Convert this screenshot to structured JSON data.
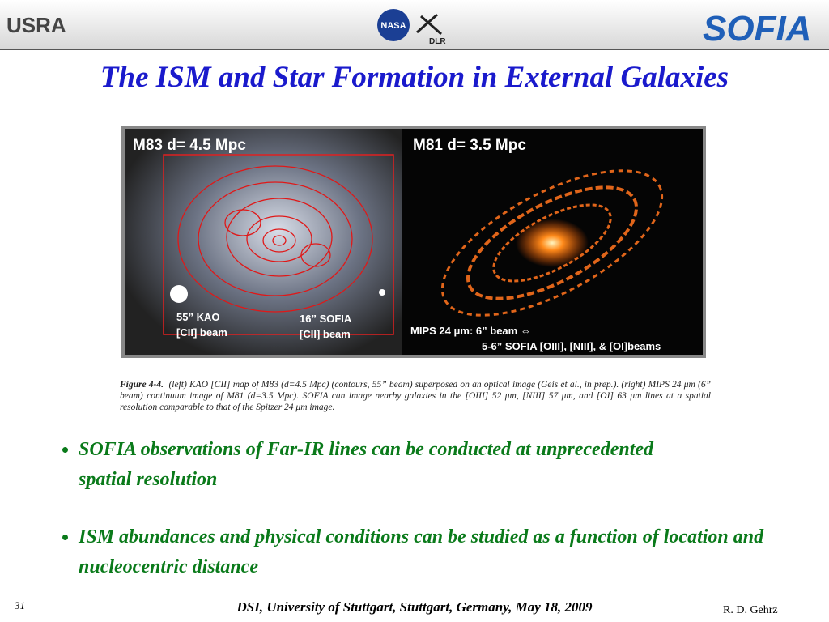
{
  "header": {
    "logos": {
      "usra": "USRA",
      "nasa": "NASA",
      "dlr": "DLR",
      "sofia": "SOFIA"
    }
  },
  "title": "The ISM and Star Formation in External Galaxies",
  "figure": {
    "left_panel": {
      "label": "M83 d= 4.5 Mpc",
      "kao_beam": [
        "55” KAO",
        "[CII] beam"
      ],
      "sofia_beam": [
        "16” SOFIA",
        "[CII] beam"
      ]
    },
    "right_panel": {
      "label": "M81 d= 3.5 Mpc",
      "beam_lines": [
        "MIPS 24 μm: 6” beam ⇔",
        "5-6” SOFIA [OIII], [NIII], & [OI]beams"
      ]
    },
    "caption": {
      "label": "Figure 4-4.",
      "text": "(left) KAO [CII] map of M83 (d=4.5 Mpc) (contours, 55” beam) superposed on an optical image (Geis et al., in prep.).  (right) MIPS 24 μm (6” beam) continuum image of M81 (d=3.5 Mpc).  SOFIA can image nearby galaxies in the [OIII] 52 μm, [NIII] 57 μm, and [OI] 63 μm lines at a spatial resolution comparable to that of the Spitzer 24 μm image."
    }
  },
  "bullets": [
    "SOFIA observations of Far-IR lines can be conducted at unprecedented spatial resolution",
    "ISM abundances and physical conditions can be studied as a function of location and nucleocentric distance"
  ],
  "footer": {
    "page_number": "31",
    "event": "DSI, University of Stuttgart, Stuttgart, Germany, May 18, 2009",
    "author": "R.  D. Gehrz"
  }
}
